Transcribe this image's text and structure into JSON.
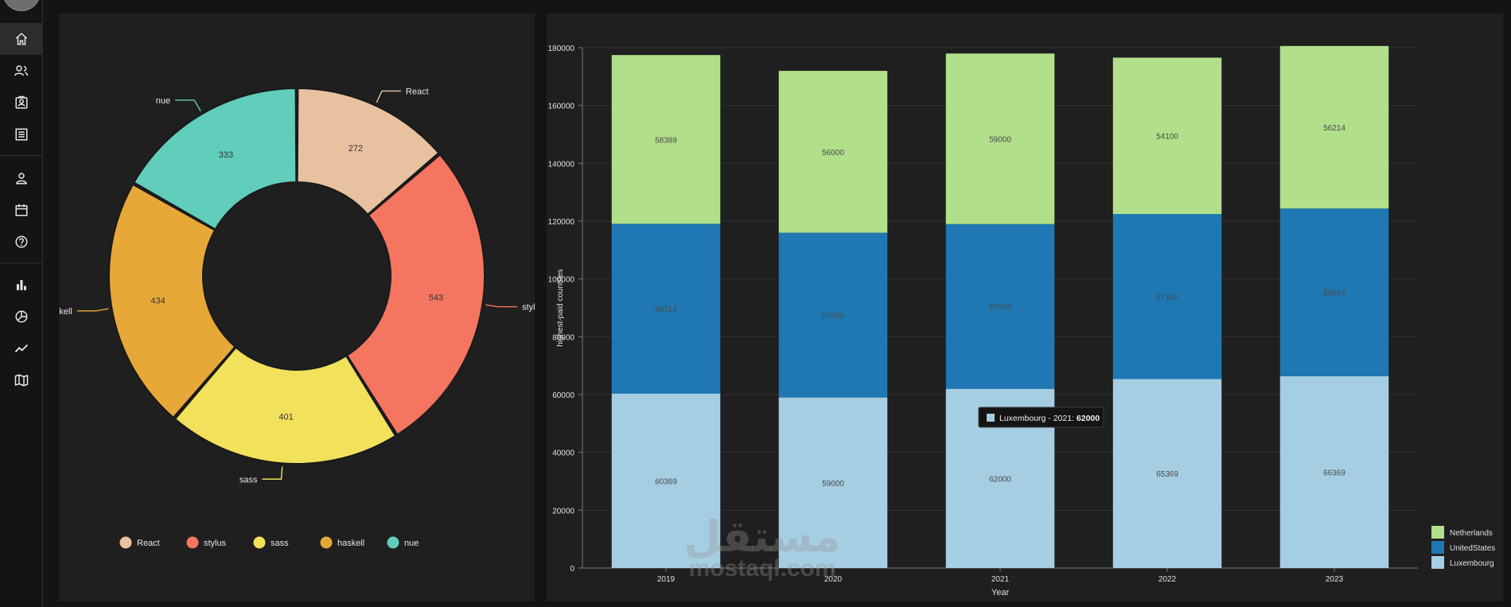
{
  "sidebar": {
    "items": [
      {
        "icon": "home-icon",
        "active": true
      },
      {
        "icon": "users-icon",
        "active": false
      },
      {
        "icon": "contacts-icon",
        "active": false
      },
      {
        "icon": "invoices-icon",
        "active": false
      },
      {
        "icon": "profile-icon",
        "active": false
      },
      {
        "icon": "calendar-icon",
        "active": false
      },
      {
        "icon": "help-icon",
        "active": false
      },
      {
        "icon": "bar-chart-icon",
        "active": false
      },
      {
        "icon": "pie-chart-icon",
        "active": false
      },
      {
        "icon": "line-chart-icon",
        "active": false
      },
      {
        "icon": "map-icon",
        "active": false
      }
    ]
  },
  "chart_data": [
    {
      "type": "pie",
      "variant": "donut",
      "categories": [
        "React",
        "stylus",
        "sass",
        "haskell",
        "nue"
      ],
      "values": [
        272,
        543,
        401,
        434,
        333
      ],
      "colors": [
        "#e8c1a0",
        "#f47560",
        "#f1e15b",
        "#e8a838",
        "#61cdbb"
      ],
      "legend_position": "bottom"
    },
    {
      "type": "bar",
      "stacked": true,
      "categories": [
        "2019",
        "2020",
        "2021",
        "2022",
        "2023"
      ],
      "series": [
        {
          "name": "Luxembourg",
          "values": [
            60369,
            59000,
            62000,
            65369,
            66369
          ],
          "color": "#a6cee3"
        },
        {
          "name": "UnitedStates",
          "values": [
            58714,
            57000,
            57000,
            57100,
            58014
          ],
          "color": "#1f78b4"
        },
        {
          "name": "Netherlands",
          "values": [
            58389,
            56000,
            59000,
            54100,
            56214
          ],
          "color": "#b2df8a"
        }
      ],
      "xlabel": "Year",
      "ylabel": "highest-paid countries",
      "ylim": [
        0,
        180000
      ],
      "yticks": [
        0,
        20000,
        40000,
        60000,
        80000,
        100000,
        120000,
        140000,
        160000,
        180000
      ],
      "grid": true,
      "legend_position": "bottom-right",
      "tooltip": {
        "label": "Luxembourg - 2021: ",
        "value": "62000"
      }
    }
  ],
  "watermark": {
    "arabic": "مستقل",
    "latin": "mostaql.com"
  }
}
